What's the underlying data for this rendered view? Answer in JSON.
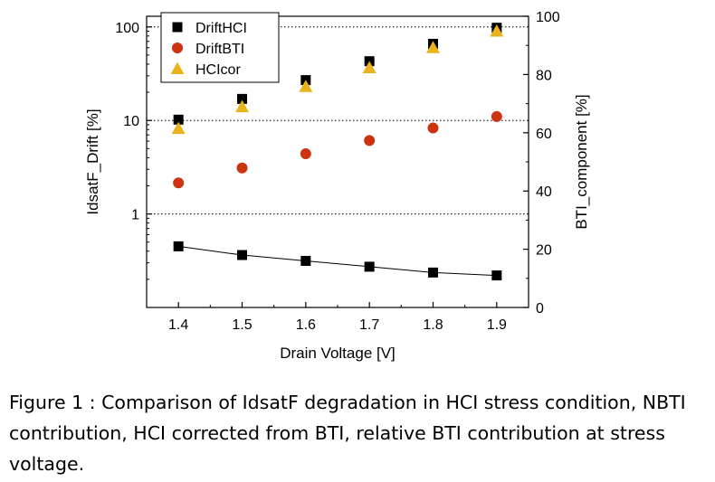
{
  "chart_data": {
    "type": "scatter",
    "x": [
      1.4,
      1.5,
      1.6,
      1.7,
      1.8,
      1.9
    ],
    "x_ticks": [
      "1.4",
      "1.5",
      "1.6",
      "1.7",
      "1.8",
      "1.9"
    ],
    "xlim": [
      1.35,
      1.95
    ],
    "xlabel": "Drain Voltage [V]",
    "ylabel": "IdsatF_Drift [%]",
    "y_scale": "log",
    "ylim": [
      0.1,
      130
    ],
    "y_ticks": [
      {
        "value": 1,
        "label": "1"
      },
      {
        "value": 10,
        "label": "10"
      },
      {
        "value": 100,
        "label": "100"
      }
    ],
    "y2label": "BTI_component [%]",
    "y2lim": [
      0,
      100
    ],
    "y2_ticks": [
      {
        "value": 0,
        "label": "0"
      },
      {
        "value": 20,
        "label": "20"
      },
      {
        "value": 40,
        "label": "40"
      },
      {
        "value": 60,
        "label": "60"
      },
      {
        "value": 80,
        "label": "80"
      },
      {
        "value": 100,
        "label": "100"
      }
    ],
    "gridlines_at": [
      1,
      10,
      100
    ],
    "legend_position": "top-left",
    "series": [
      {
        "name": "DriftHCI",
        "axis": "left",
        "marker": "square",
        "color": "#000000",
        "values": [
          10.2,
          17,
          27,
          43,
          66,
          98
        ]
      },
      {
        "name": "DriftBTI",
        "axis": "left",
        "marker": "circle",
        "color": "#cc3311",
        "values": [
          2.15,
          3.1,
          4.4,
          6.1,
          8.3,
          11
        ]
      },
      {
        "name": "HCIcor",
        "axis": "left",
        "marker": "triangle",
        "color": "#eab21c",
        "values": [
          8.2,
          14,
          23,
          36.5,
          60,
          90
        ]
      },
      {
        "name": "",
        "axis": "right",
        "marker": "square-line",
        "color": "#000000",
        "values": [
          21,
          18,
          16,
          14,
          12,
          11
        ]
      }
    ]
  },
  "caption": "Figure 1 : Comparison of IdsatF degradation in HCI stress condition, NBTI contribution, HCI corrected from BTI, relative BTI contribution at stress voltage."
}
